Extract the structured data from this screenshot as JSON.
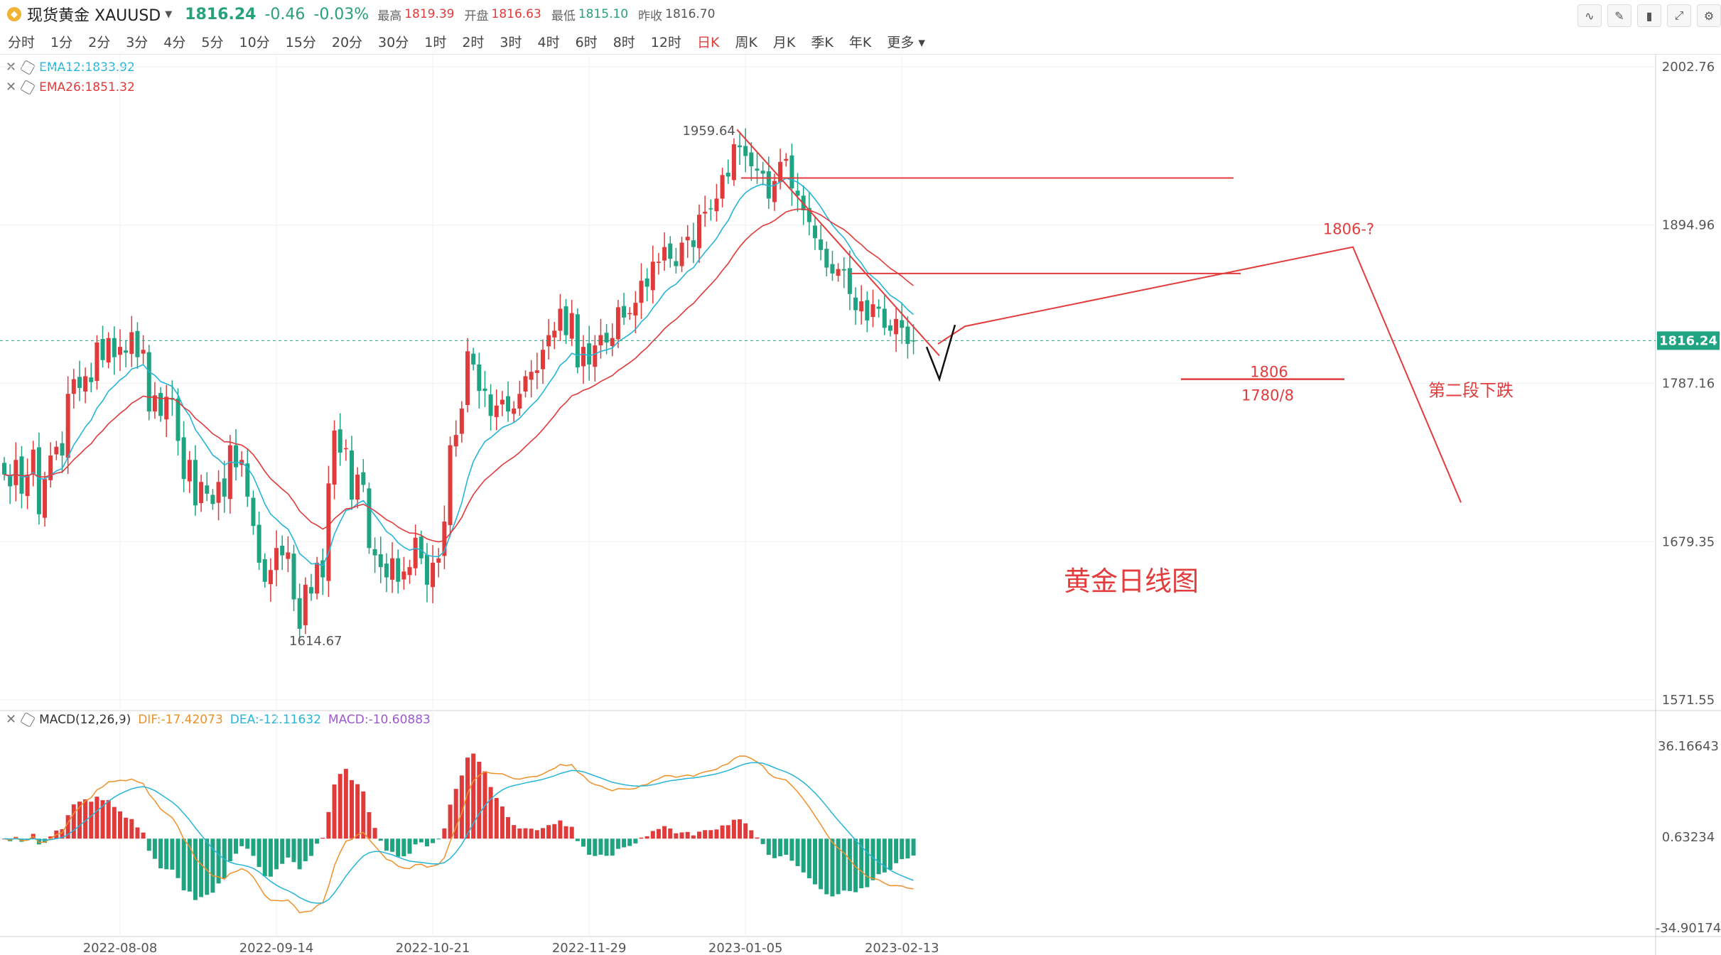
{
  "header": {
    "symbol": "现货黄金 XAUUSD",
    "last": "1816.24",
    "change": "-0.46",
    "change_pct": "-0.03%",
    "high_label": "最高",
    "high": "1819.39",
    "open_label": "开盘",
    "open": "1816.63",
    "low_label": "最低",
    "low": "1815.10",
    "prev_label": "昨收",
    "prev": "1816.70"
  },
  "timeframes": [
    "分时",
    "1分",
    "2分",
    "3分",
    "4分",
    "5分",
    "10分",
    "15分",
    "20分",
    "30分",
    "1时",
    "2时",
    "3时",
    "4时",
    "6时",
    "8时",
    "12时",
    "日K",
    "周K",
    "月K",
    "季K",
    "年K",
    "更多"
  ],
  "active_timeframe": "日K",
  "indicators": {
    "ema12": "EMA12:1833.92",
    "ema26": "EMA26:1851.32",
    "macd_name": "MACD(12,26,9)",
    "dif": "DIF:-17.42073",
    "dea": "DEA:-12.11632",
    "macd": "MACD:-10.60883"
  },
  "colors": {
    "up": "#e03a3a",
    "down": "#1fa381",
    "ema12": "#26b5d8",
    "ema26": "#e03a3a",
    "dif": "#f0902a",
    "dea": "#26b5d8",
    "annot": "#e23c3c"
  },
  "chart_data": {
    "type": "candlestick",
    "price_axis": {
      "ticks": [
        "2002.76",
        "1894.96",
        "1787.16",
        "1679.35",
        "1571.55"
      ],
      "last_label": "1816.24",
      "range": [
        1571.55,
        2002.76
      ]
    },
    "macd_axis": {
      "ticks": [
        "36.16643",
        "0.63234",
        "-34.90174"
      ],
      "range": [
        -34.90174,
        36.16643
      ]
    },
    "date_labels": [
      "2022-08-08",
      "2022-09-14",
      "2022-10-21",
      "2022-11-29",
      "2023-01-05",
      "2023-02-13"
    ],
    "date_label_index": [
      20,
      47,
      74,
      101,
      128,
      155
    ],
    "closes": [
      1725,
      1717,
      1735,
      1712,
      1725,
      1742,
      1698,
      1722,
      1738,
      1744,
      1738,
      1780,
      1790,
      1784,
      1792,
      1788,
      1815,
      1803,
      1818,
      1805,
      1812,
      1808,
      1822,
      1805,
      1810,
      1768,
      1779,
      1765,
      1778,
      1776,
      1748,
      1722,
      1735,
      1704,
      1720,
      1712,
      1705,
      1720,
      1710,
      1745,
      1730,
      1735,
      1710,
      1690,
      1665,
      1652,
      1660,
      1675,
      1670,
      1672,
      1640,
      1620,
      1650,
      1644,
      1665,
      1655,
      1719,
      1755,
      1740,
      1743,
      1708,
      1725,
      1718,
      1675,
      1670,
      1662,
      1655,
      1668,
      1652,
      1659,
      1662,
      1682,
      1668,
      1650,
      1665,
      1668,
      1693,
      1745,
      1752,
      1770,
      1809,
      1800,
      1782,
      1782,
      1765,
      1772,
      1776,
      1768,
      1770,
      1780,
      1792,
      1795,
      1796,
      1810,
      1820,
      1823,
      1838,
      1820,
      1835,
      1798,
      1812,
      1800,
      1813,
      1820,
      1815,
      1818,
      1839,
      1832,
      1835,
      1842,
      1857,
      1853,
      1870,
      1870,
      1880,
      1872,
      1867,
      1883,
      1887,
      1880,
      1902,
      1904,
      1906,
      1913,
      1929,
      1928,
      1950,
      1948,
      1942,
      1935,
      1932,
      1930,
      1913,
      1925,
      1938,
      1940,
      1920,
      1915,
      1905,
      1897,
      1886,
      1878,
      1866,
      1862,
      1865,
      1864,
      1848,
      1837,
      1843,
      1830,
      1841,
      1838,
      1825,
      1823,
      1831,
      1825,
      1814,
      1816
    ],
    "labels": [
      "1959.64",
      "1614.67"
    ],
    "annotations": [
      "1806-?",
      "1806",
      "1780/8",
      "第二段下跌",
      "黄金日线图"
    ]
  }
}
